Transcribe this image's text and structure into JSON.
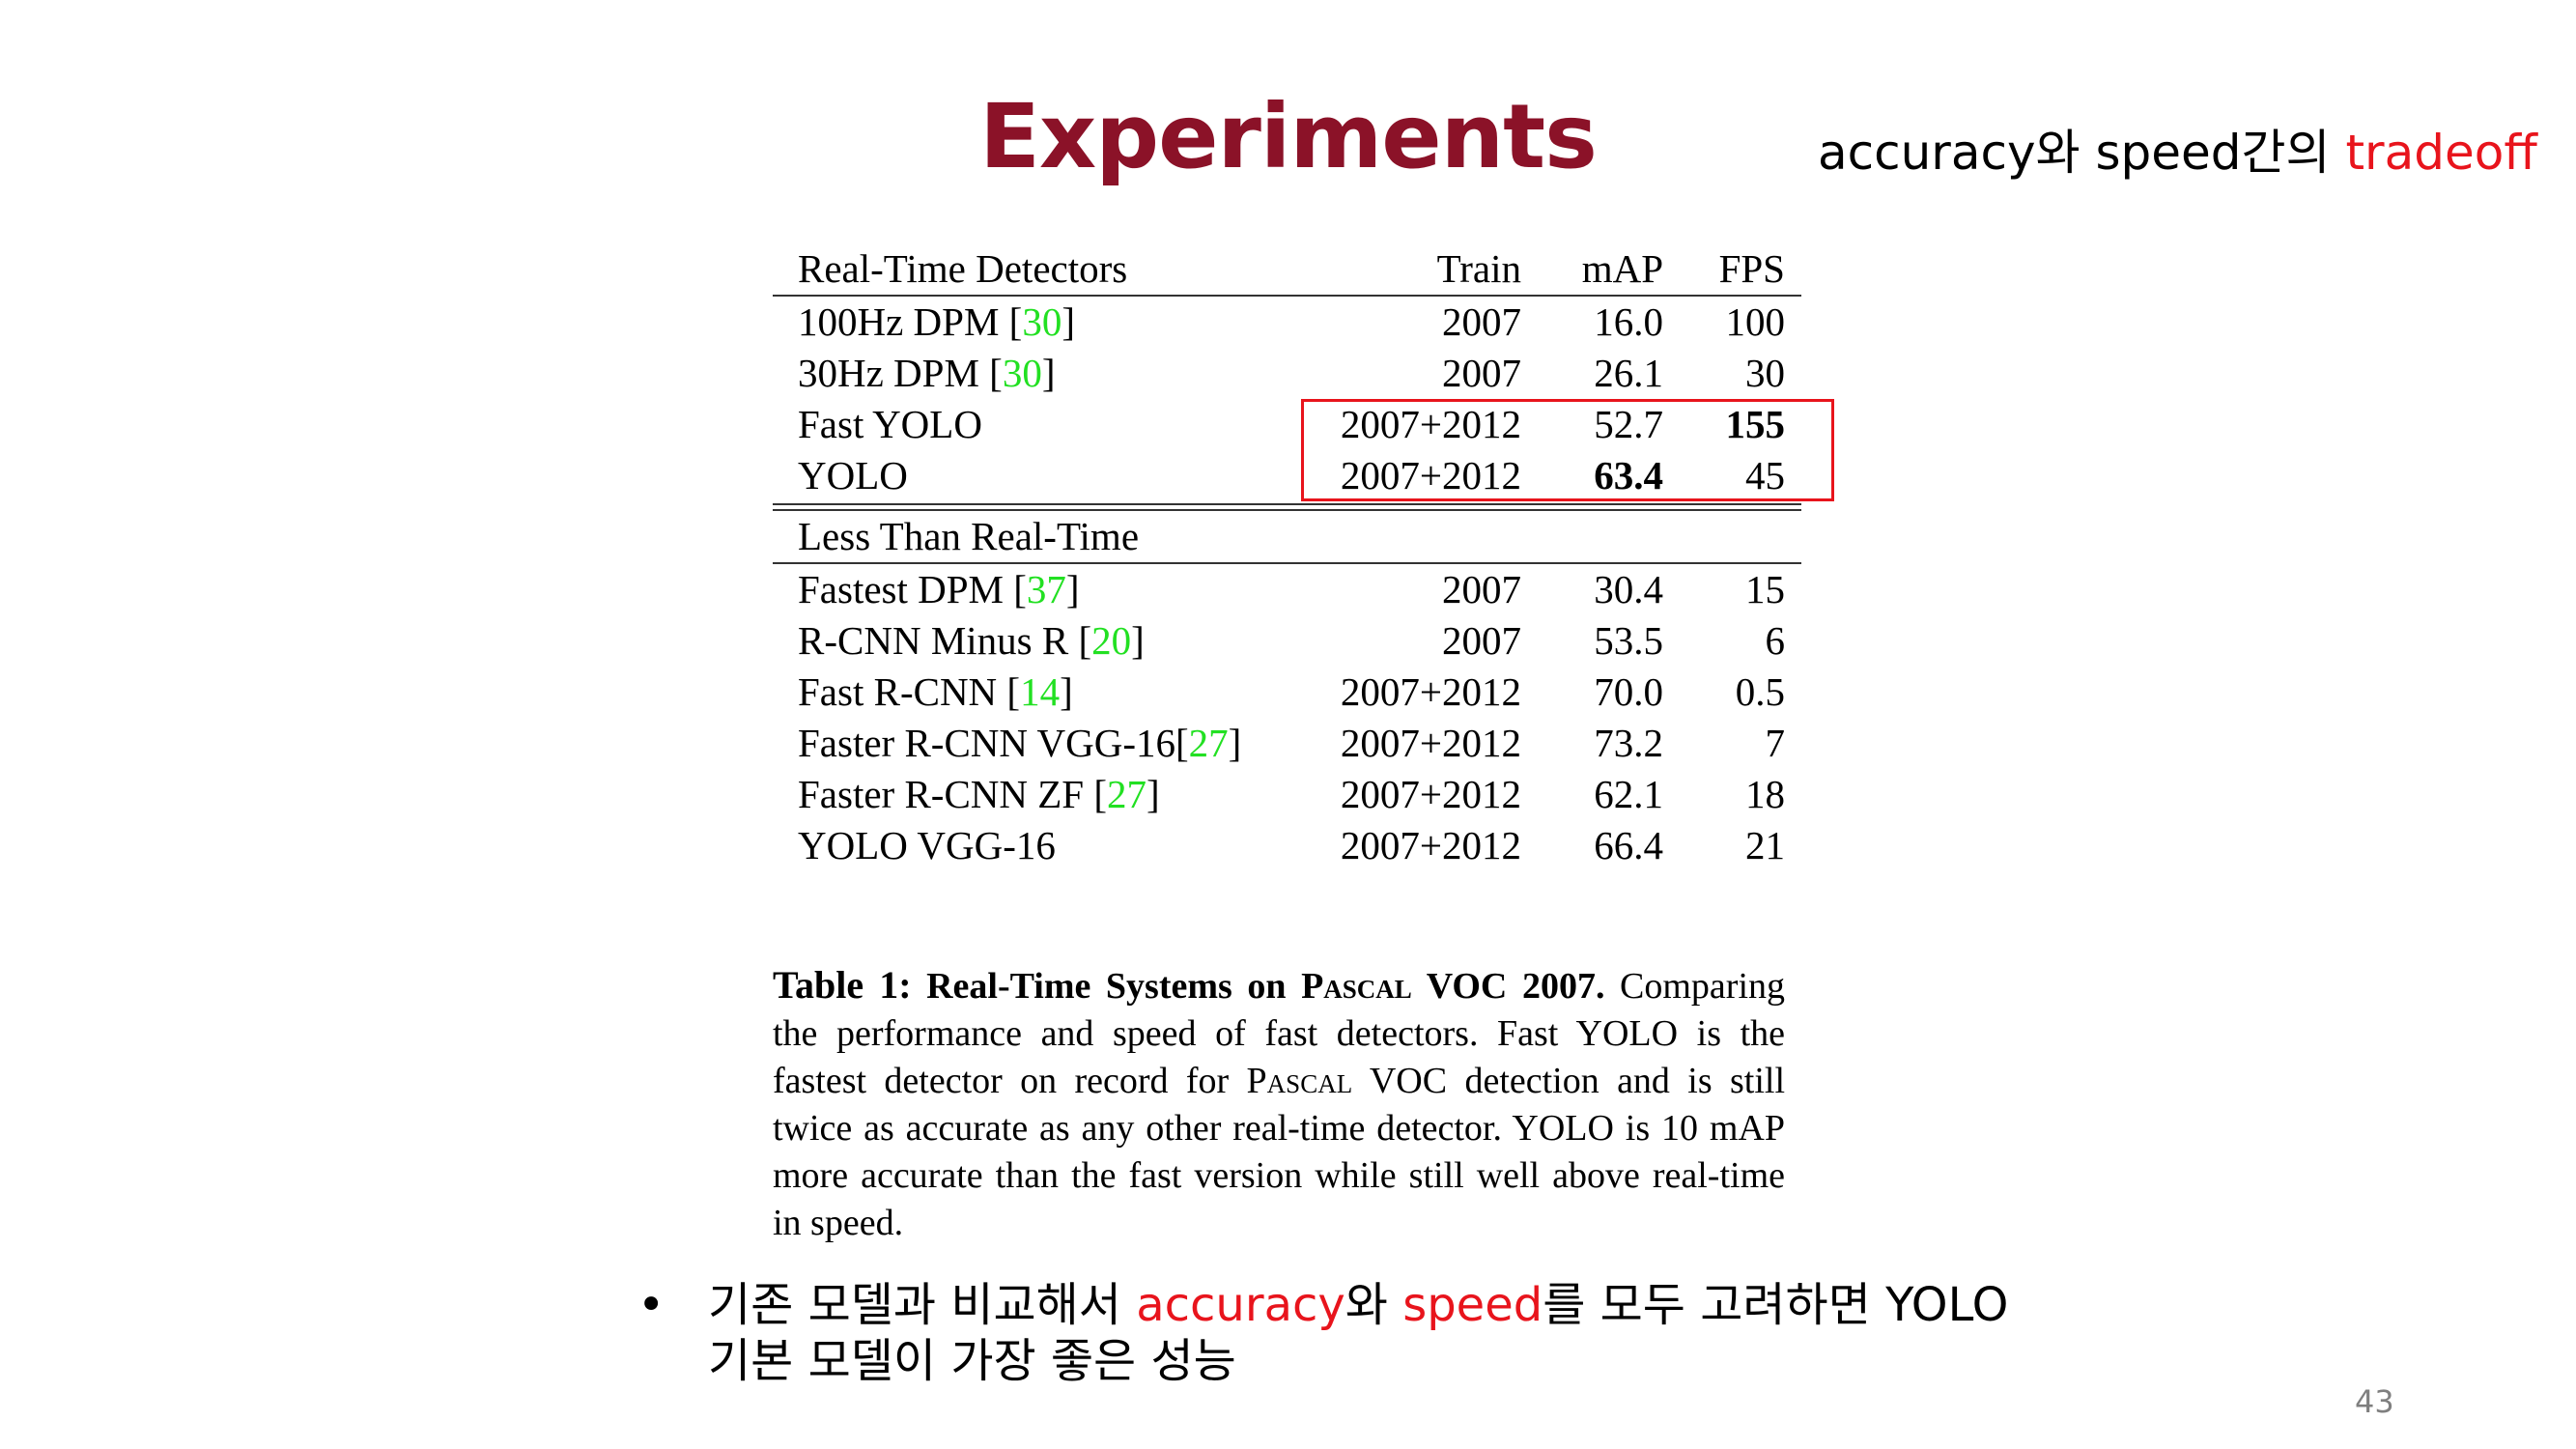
{
  "slide": {
    "title": "Experiments",
    "page_number": "43"
  },
  "tagline": {
    "part1": "accuracy와 speed간의 ",
    "part2": "tradeoff"
  },
  "table": {
    "header": {
      "group": "Real-Time Detectors",
      "train": "Train",
      "map": "mAP",
      "fps": "FPS"
    },
    "realtime_rows": [
      {
        "name": "100Hz DPM [",
        "ref": "30",
        "close": "]",
        "train": "2007",
        "map": "16.0",
        "fps": "100"
      },
      {
        "name": "30Hz DPM [",
        "ref": "30",
        "close": "]",
        "train": "2007",
        "map": "26.1",
        "fps": "30"
      },
      {
        "name": "Fast YOLO",
        "ref": "",
        "close": "",
        "train": "2007+2012",
        "map": "52.7",
        "fps": "155"
      },
      {
        "name": "YOLO",
        "ref": "",
        "close": "",
        "train": "2007+2012",
        "map": "63.4",
        "fps": "45"
      }
    ],
    "less_group": "Less Than Real-Time",
    "less_rows": [
      {
        "name": "Fastest DPM [",
        "ref": "37",
        "close": "]",
        "train": "2007",
        "map": "30.4",
        "fps": "15"
      },
      {
        "name": "R-CNN Minus R [",
        "ref": "20",
        "close": "]",
        "train": "2007",
        "map": "53.5",
        "fps": "6"
      },
      {
        "name": "Fast R-CNN [",
        "ref": "14",
        "close": "]",
        "train": "2007+2012",
        "map": "70.0",
        "fps": "0.5"
      },
      {
        "name": "Faster R-CNN VGG-16[",
        "ref": "27",
        "close": "]",
        "train": "2007+2012",
        "map": "73.2",
        "fps": "7"
      },
      {
        "name": "Faster R-CNN ZF [",
        "ref": "27",
        "close": "]",
        "train": "2007+2012",
        "map": "62.1",
        "fps": "18"
      },
      {
        "name": "YOLO VGG-16",
        "ref": "",
        "close": "",
        "train": "2007+2012",
        "map": "66.4",
        "fps": "21"
      }
    ],
    "colors": {
      "ref": "#22e022",
      "highlight": "#e8141c"
    }
  },
  "caption": {
    "label": "Table 1:",
    "title_a": " Real-Time Systems on ",
    "title_sc": "Pascal",
    "title_b": " VOC 2007.",
    "body_a": " Comparing the performance and speed of fast detectors. Fast YOLO is the fastest detector on record for ",
    "body_sc": "Pascal",
    "body_b": " VOC detection and is still twice as accurate as any other real-time detector. YOLO is 10 mAP more accurate than the fast version while still well above real-time in speed."
  },
  "bullet": {
    "marker": "•",
    "text_a": "기존 모델과 비교해서 ",
    "accent_a": "accuracy",
    "text_b": "와 ",
    "accent_b": "speed",
    "text_c": "를 모두 고려하면 YOLO",
    "text_d": "기본 모델이 가장 좋은 성능"
  },
  "accent_color": "#e8141c",
  "title_color": "#8b1228"
}
